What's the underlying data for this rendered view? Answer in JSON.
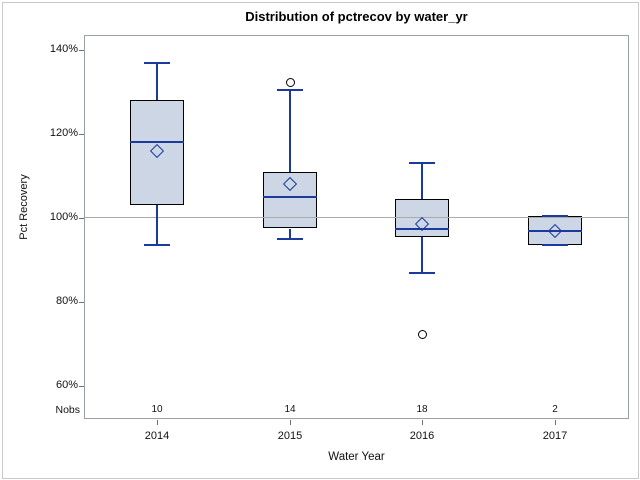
{
  "chart_data": {
    "type": "box",
    "title": "Distribution of pctrecov by water_yr",
    "xlabel": "Water Year",
    "ylabel": "Pct Recovery",
    "nobs_label": "Nobs",
    "ylim": [
      52,
      144
    ],
    "grid": false,
    "reference_line": 100,
    "y_ticks": [
      {
        "value": 140,
        "label": "140%"
      },
      {
        "value": 120,
        "label": "120%"
      },
      {
        "value": 100,
        "label": "100%"
      },
      {
        "value": 80,
        "label": "80%"
      },
      {
        "value": 60,
        "label": "60%"
      }
    ],
    "categories": [
      "2014",
      "2015",
      "2016",
      "2017"
    ],
    "series": [
      {
        "category": "2014",
        "n": 10,
        "whisker_low": 93.5,
        "q1": 103,
        "median": 118,
        "q3": 128,
        "whisker_high": 137,
        "mean": 116,
        "outliers": []
      },
      {
        "category": "2015",
        "n": 14,
        "whisker_low": 95,
        "q1": 97.5,
        "median": 105,
        "q3": 111,
        "whisker_high": 130.5,
        "mean": 108,
        "outliers": [
          132.5
        ]
      },
      {
        "category": "2016",
        "n": 18,
        "whisker_low": 87,
        "q1": 95.5,
        "median": 97.5,
        "q3": 104.5,
        "whisker_high": 113,
        "mean": 98.5,
        "outliers": [
          72.5
        ]
      },
      {
        "category": "2017",
        "n": 2,
        "whisker_low": 93.5,
        "q1": 93.5,
        "median": 97,
        "q3": 100.5,
        "whisker_high": 100.5,
        "mean": 97,
        "outliers": []
      }
    ],
    "colors": {
      "box_fill": "#ccd6e4",
      "box_border": "#000000",
      "line_blue": "#1b3a9d",
      "reference_line": "#ababab",
      "axis_tick": "#6f6f6f",
      "plot_border": "#9aa0a5",
      "outlier": "#000000",
      "text": "#111111"
    }
  }
}
